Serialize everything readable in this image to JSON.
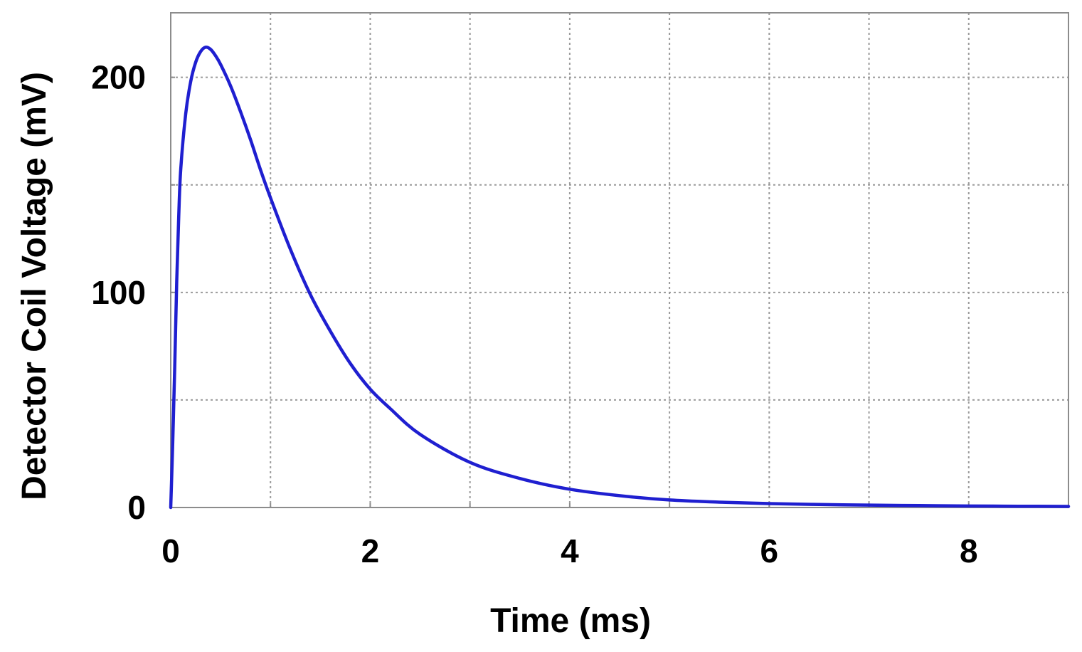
{
  "chart_data": {
    "type": "line",
    "title": "",
    "xlabel": "Time (ms)",
    "ylabel": "Detector Coil Voltage (mV)",
    "xlim": [
      0,
      9
    ],
    "ylim": [
      0,
      230
    ],
    "xticks": [
      0,
      2,
      4,
      6,
      8
    ],
    "xtick_labels": [
      "0",
      "2",
      "4",
      "6",
      "8"
    ],
    "xgrid": [
      0,
      1,
      2,
      3,
      4,
      5,
      6,
      7,
      8,
      9
    ],
    "yticks": [
      0,
      100,
      200
    ],
    "ytick_labels": [
      "0",
      "100",
      "200"
    ],
    "ygrid": [
      0,
      50,
      100,
      150,
      200
    ],
    "grid": true,
    "legend": "none",
    "series": [
      {
        "color": "#1f1fd0",
        "x": [
          0,
          0.02,
          0.04,
          0.06,
          0.08,
          0.1,
          0.15,
          0.2,
          0.25,
          0.3,
          0.35,
          0.4,
          0.45,
          0.5,
          0.6,
          0.7,
          0.8,
          0.9,
          1.0,
          1.2,
          1.4,
          1.6,
          1.8,
          2.0,
          2.2,
          2.5,
          3.0,
          3.5,
          4.0,
          4.5,
          5.0,
          5.5,
          6.0,
          6.5,
          7.0,
          7.5,
          8.0,
          8.5,
          9.0
        ],
        "y": [
          0,
          30,
          65,
          105,
          135,
          157,
          183,
          198,
          207,
          212,
          214,
          213,
          210,
          206,
          196,
          184,
          171,
          157,
          144,
          120,
          99,
          82,
          67,
          55,
          46,
          34,
          21,
          13.5,
          8.5,
          5.5,
          3.5,
          2.5,
          1.8,
          1.4,
          1.1,
          0.9,
          0.7,
          0.6,
          0.5
        ]
      }
    ]
  }
}
